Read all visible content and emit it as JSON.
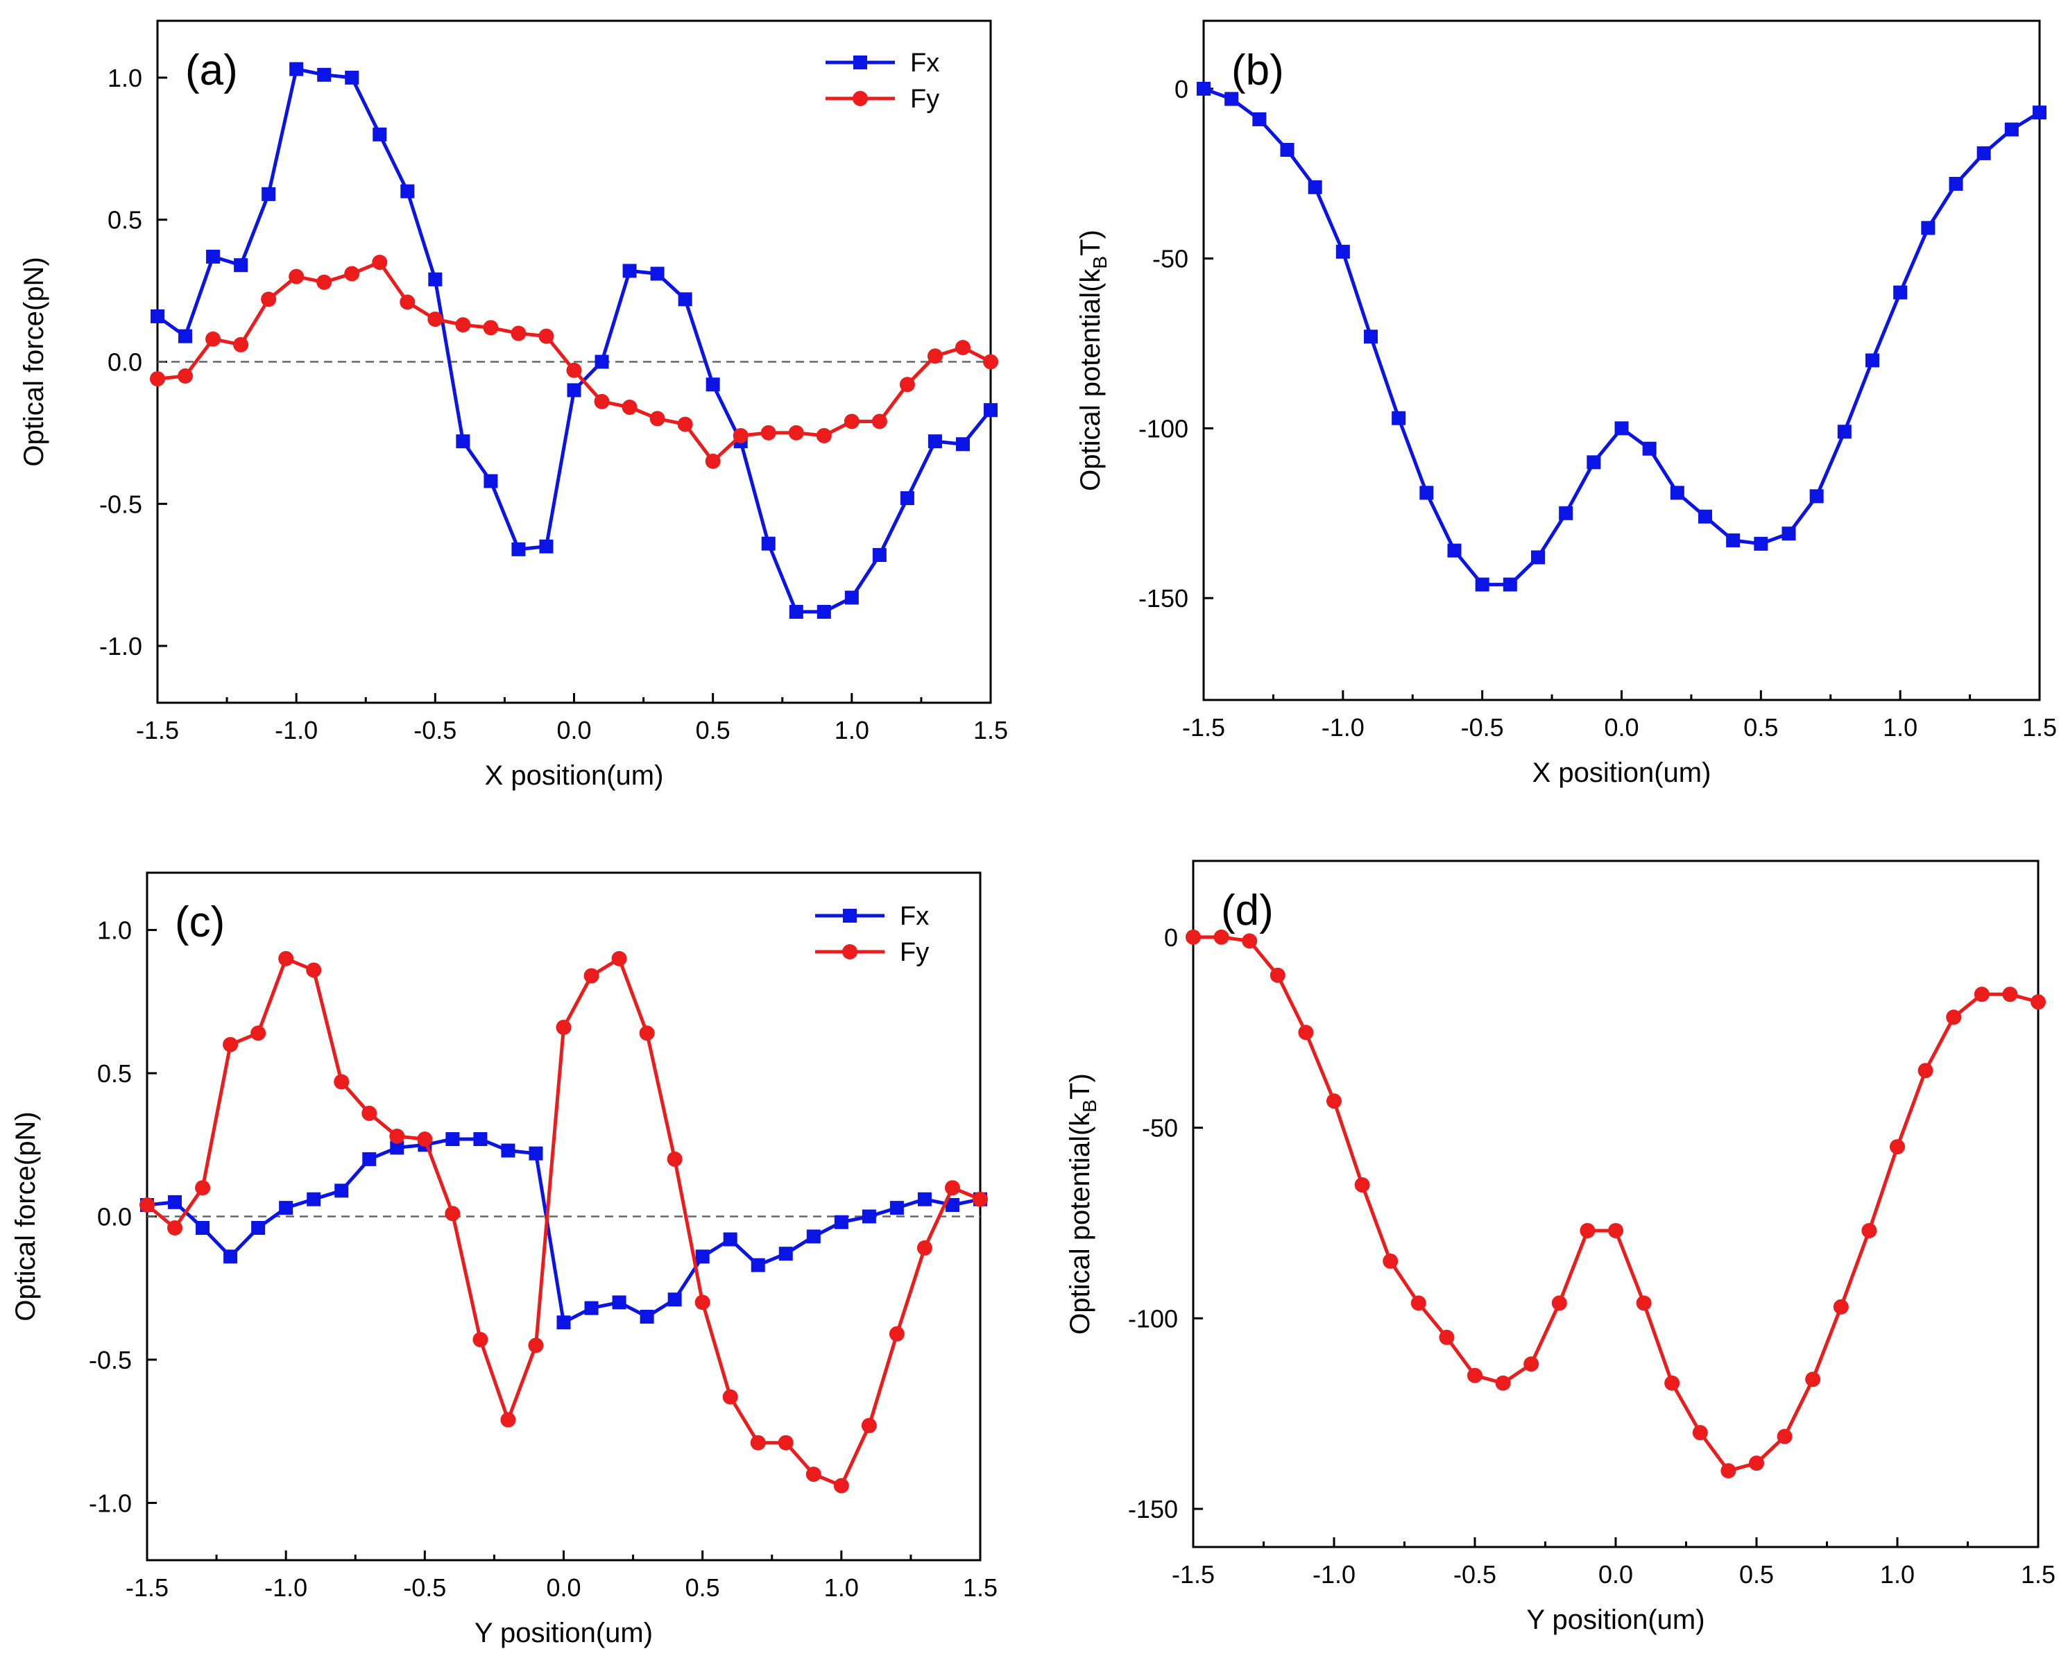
{
  "chart_data": [
    {
      "type": "line",
      "panel_label": "(a)",
      "xlabel": "X position(um)",
      "ylabel": "Optical force(pN)",
      "xlim": [
        -1.5,
        1.5
      ],
      "ylim": [
        -1.2,
        1.2
      ],
      "xticks": [
        "-1.5",
        "-1.0",
        "-0.5",
        "0.0",
        "0.5",
        "1.0",
        "1.5"
      ],
      "yticks": [
        "-1.0",
        "-0.5",
        "0.0",
        "0.5",
        "1.0"
      ],
      "zero_line": true,
      "legend_position": "top-right",
      "x": [
        -1.5,
        -1.4,
        -1.3,
        -1.2,
        -1.1,
        -1.0,
        -0.9,
        -0.8,
        -0.7,
        -0.6,
        -0.5,
        -0.4,
        -0.3,
        -0.2,
        -0.1,
        0.0,
        0.1,
        0.2,
        0.3,
        0.4,
        0.5,
        0.6,
        0.7,
        0.8,
        0.9,
        1.0,
        1.1,
        1.2,
        1.3,
        1.4,
        1.5
      ],
      "series": [
        {
          "name": "Fx",
          "color": "#0a14e6",
          "marker": "square",
          "values": [
            0.16,
            0.09,
            0.37,
            0.34,
            0.59,
            1.03,
            1.01,
            1.0,
            0.8,
            0.6,
            0.29,
            -0.28,
            -0.42,
            -0.66,
            -0.65,
            -0.1,
            0.0,
            0.32,
            0.31,
            0.22,
            -0.08,
            -0.28,
            -0.64,
            -0.88,
            -0.88,
            -0.83,
            -0.68,
            -0.48,
            -0.28,
            -0.29,
            -0.17
          ]
        },
        {
          "name": "Fy",
          "color": "#ec1c1c",
          "marker": "circle",
          "values": [
            -0.06,
            -0.05,
            0.08,
            0.06,
            0.22,
            0.3,
            0.28,
            0.31,
            0.35,
            0.21,
            0.15,
            0.13,
            0.12,
            0.1,
            0.09,
            -0.03,
            -0.14,
            -0.16,
            -0.2,
            -0.22,
            -0.35,
            -0.26,
            -0.25,
            -0.25,
            -0.26,
            -0.21,
            -0.21,
            -0.08,
            0.02,
            0.05,
            0.0
          ]
        }
      ]
    },
    {
      "type": "line",
      "panel_label": "(b)",
      "xlabel": "X position(um)",
      "ylabel_main": "Optical potential(k",
      "ylabel_sub": "B",
      "ylabel_tail": "T)",
      "xlim": [
        -1.5,
        1.5
      ],
      "ylim": [
        -180,
        20
      ],
      "xticks": [
        "-1.5",
        "-1.0",
        "-0.5",
        "0.0",
        "0.5",
        "1.0",
        "1.5"
      ],
      "yticks": [
        "-150",
        "-100",
        "-50",
        "0"
      ],
      "x": [
        -1.5,
        -1.4,
        -1.3,
        -1.2,
        -1.1,
        -1.0,
        -0.9,
        -0.8,
        -0.7,
        -0.6,
        -0.5,
        -0.4,
        -0.3,
        -0.2,
        -0.1,
        0.0,
        0.1,
        0.2,
        0.3,
        0.4,
        0.5,
        0.6,
        0.7,
        0.8,
        0.9,
        1.0,
        1.1,
        1.2,
        1.3,
        1.4,
        1.5
      ],
      "series": [
        {
          "name": "potential",
          "color": "#0a14e6",
          "marker": "square",
          "values": [
            0,
            -3,
            -9,
            -18,
            -29,
            -48,
            -73,
            -97,
            -119,
            -136,
            -146,
            -146,
            -138,
            -125,
            -110,
            -100,
            -106,
            -119,
            -126,
            -133,
            -134,
            -131,
            -120,
            -101,
            -80,
            -60,
            -41,
            -28,
            -19,
            -12,
            -7
          ]
        }
      ]
    },
    {
      "type": "line",
      "panel_label": "(c)",
      "xlabel": "Y position(um)",
      "ylabel": "Optical force(pN)",
      "xlim": [
        -1.5,
        1.5
      ],
      "ylim": [
        -1.2,
        1.2
      ],
      "xticks": [
        "-1.5",
        "-1.0",
        "-0.5",
        "0.0",
        "0.5",
        "1.0",
        "1.5"
      ],
      "yticks": [
        "-1.0",
        "-0.5",
        "0.0",
        "0.5",
        "1.0"
      ],
      "zero_line": true,
      "legend_position": "top-right",
      "x": [
        -1.5,
        -1.4,
        -1.3,
        -1.2,
        -1.1,
        -1.0,
        -0.9,
        -0.8,
        -0.7,
        -0.6,
        -0.5,
        -0.4,
        -0.3,
        -0.2,
        -0.1,
        0.0,
        0.1,
        0.2,
        0.3,
        0.4,
        0.5,
        0.6,
        0.7,
        0.8,
        0.9,
        1.0,
        1.1,
        1.2,
        1.3,
        1.4,
        1.5
      ],
      "series": [
        {
          "name": "Fx",
          "color": "#0a14e6",
          "marker": "square",
          "values": [
            0.04,
            0.05,
            -0.04,
            -0.14,
            -0.04,
            0.03,
            0.06,
            0.09,
            0.2,
            0.24,
            0.25,
            0.27,
            0.27,
            0.23,
            0.22,
            -0.37,
            -0.32,
            -0.3,
            -0.35,
            -0.29,
            -0.14,
            -0.08,
            -0.17,
            -0.13,
            -0.07,
            -0.02,
            0.0,
            0.03,
            0.06,
            0.04,
            0.06
          ]
        },
        {
          "name": "Fy",
          "color": "#ec1c1c",
          "marker": "circle",
          "values": [
            0.04,
            -0.04,
            0.1,
            0.6,
            0.64,
            0.9,
            0.86,
            0.47,
            0.36,
            0.28,
            0.27,
            0.01,
            -0.43,
            -0.71,
            -0.45,
            0.66,
            0.84,
            0.9,
            0.64,
            0.2,
            -0.3,
            -0.63,
            -0.79,
            -0.79,
            -0.9,
            -0.94,
            -0.73,
            -0.41,
            -0.11,
            0.1,
            0.06
          ]
        }
      ]
    },
    {
      "type": "line",
      "panel_label": "(d)",
      "xlabel": "Y position(um)",
      "ylabel_main": "Optical potential(k",
      "ylabel_sub": "B",
      "ylabel_tail": "T)",
      "xlim": [
        -1.5,
        1.5
      ],
      "ylim": [
        -160,
        20
      ],
      "xticks": [
        "-1.5",
        "-1.0",
        "-0.5",
        "0.0",
        "0.5",
        "1.0",
        "1.5"
      ],
      "yticks": [
        "-150",
        "-100",
        "-50",
        "0"
      ],
      "x": [
        -1.5,
        -1.4,
        -1.3,
        -1.2,
        -1.1,
        -1.0,
        -0.9,
        -0.8,
        -0.7,
        -0.6,
        -0.5,
        -0.4,
        -0.3,
        -0.2,
        -0.1,
        0.0,
        0.1,
        0.2,
        0.3,
        0.4,
        0.5,
        0.6,
        0.7,
        0.8,
        0.9,
        1.0,
        1.1,
        1.2,
        1.3,
        1.4,
        1.5
      ],
      "series": [
        {
          "name": "potential",
          "color": "#ec1c1c",
          "marker": "circle",
          "values": [
            0,
            0,
            -1,
            -10,
            -25,
            -43,
            -65,
            -85,
            -96,
            -105,
            -115,
            -117,
            -112,
            -96,
            -77,
            -77,
            -96,
            -117,
            -130,
            -140,
            -138,
            -131,
            -116,
            -97,
            -77,
            -55,
            -35,
            -21,
            -15,
            -15,
            -17
          ]
        }
      ]
    }
  ]
}
